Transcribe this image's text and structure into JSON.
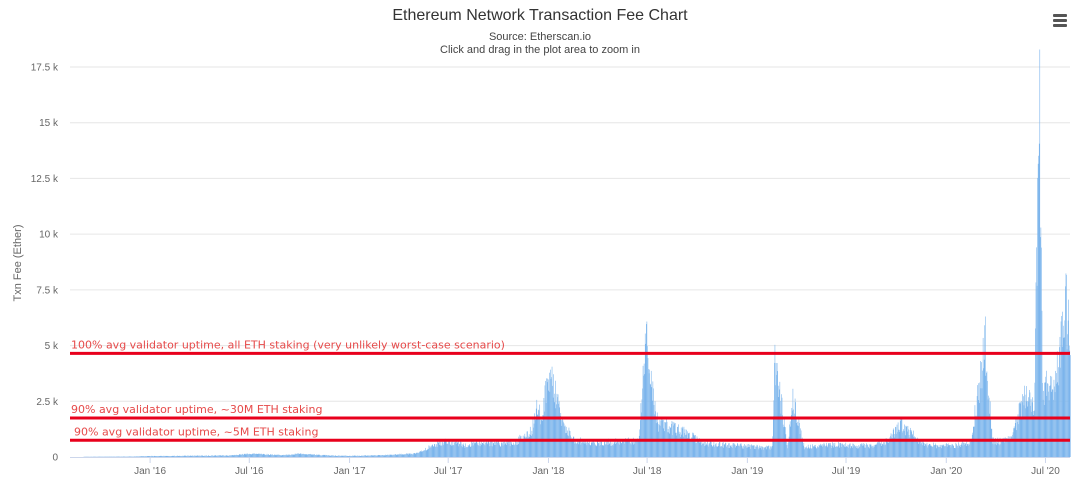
{
  "menu": {
    "icon": "hamburger-menu-icon"
  },
  "chart_data": {
    "type": "bar",
    "title": "Ethereum Network Transaction Fee Chart",
    "subtitle": "Source: Etherscan.io",
    "hint": "Click and drag in the plot area to zoom in",
    "ylabel": "Txn Fee (Ether)",
    "xlabel": "",
    "x_range": [
      "2015-08-07",
      "2020-08-15"
    ],
    "ylim": [
      0,
      17500
    ],
    "grid": true,
    "legend": "none",
    "color": "#7cb5ec",
    "x_ticks": [
      {
        "label": "Jan '16",
        "date": "2016-01-01"
      },
      {
        "label": "Jul '16",
        "date": "2016-07-01"
      },
      {
        "label": "Jan '17",
        "date": "2017-01-01"
      },
      {
        "label": "Jul '17",
        "date": "2017-07-01"
      },
      {
        "label": "Jan '18",
        "date": "2018-01-01"
      },
      {
        "label": "Jul '18",
        "date": "2018-07-01"
      },
      {
        "label": "Jan '19",
        "date": "2019-01-01"
      },
      {
        "label": "Jul '19",
        "date": "2019-07-01"
      },
      {
        "label": "Jan '20",
        "date": "2020-01-01"
      },
      {
        "label": "Jul '20",
        "date": "2020-07-01"
      }
    ],
    "y_ticks": [
      {
        "label": "0",
        "value": 0
      },
      {
        "label": "2.5 k",
        "value": 2500
      },
      {
        "label": "5 k",
        "value": 5000
      },
      {
        "label": "7.5 k",
        "value": 7500
      },
      {
        "label": "10 k",
        "value": 10000
      },
      {
        "label": "12.5 k",
        "value": 12500
      },
      {
        "label": "15 k",
        "value": 15000
      },
      {
        "label": "17.5 k",
        "value": 17500
      }
    ],
    "series": [
      {
        "values": [
          [
            "2015-09-01",
            10
          ],
          [
            "2015-12-01",
            20
          ],
          [
            "2016-01-01",
            40
          ],
          [
            "2016-03-01",
            50
          ],
          [
            "2016-06-01",
            70
          ],
          [
            "2016-07-01",
            150
          ],
          [
            "2016-09-01",
            80
          ],
          [
            "2016-10-01",
            140
          ],
          [
            "2016-12-01",
            60
          ],
          [
            "2017-01-01",
            50
          ],
          [
            "2017-03-01",
            80
          ],
          [
            "2017-05-01",
            150
          ],
          [
            "2017-06-01",
            500
          ],
          [
            "2017-07-01",
            700
          ],
          [
            "2017-08-01",
            550
          ],
          [
            "2017-09-01",
            650
          ],
          [
            "2017-10-01",
            600
          ],
          [
            "2017-11-01",
            650
          ],
          [
            "2017-12-01",
            1200
          ],
          [
            "2017-12-10",
            2300
          ],
          [
            "2017-12-20",
            1800
          ],
          [
            "2018-01-01",
            3700
          ],
          [
            "2018-01-10",
            3200
          ],
          [
            "2018-01-25",
            1500
          ],
          [
            "2018-02-15",
            800
          ],
          [
            "2018-03-15",
            600
          ],
          [
            "2018-04-15",
            650
          ],
          [
            "2018-05-15",
            700
          ],
          [
            "2018-06-15",
            700
          ],
          [
            "2018-07-01",
            5850
          ],
          [
            "2018-07-03",
            4000
          ],
          [
            "2018-07-20",
            1500
          ],
          [
            "2018-08-15",
            1300
          ],
          [
            "2018-09-15",
            1000
          ],
          [
            "2018-10-15",
            600
          ],
          [
            "2018-11-15",
            550
          ],
          [
            "2018-12-15",
            500
          ],
          [
            "2019-01-15",
            450
          ],
          [
            "2019-02-15",
            400
          ],
          [
            "2019-02-20",
            4400
          ],
          [
            "2019-03-15",
            450
          ],
          [
            "2019-03-25",
            2500
          ],
          [
            "2019-04-15",
            450
          ],
          [
            "2019-05-15",
            500
          ],
          [
            "2019-06-15",
            550
          ],
          [
            "2019-07-15",
            500
          ],
          [
            "2019-08-15",
            500
          ],
          [
            "2019-09-15",
            700
          ],
          [
            "2019-10-10",
            1500
          ],
          [
            "2019-11-15",
            600
          ],
          [
            "2019-12-15",
            500
          ],
          [
            "2020-01-15",
            500
          ],
          [
            "2020-02-15",
            700
          ],
          [
            "2020-03-12",
            5050
          ],
          [
            "2020-03-25",
            700
          ],
          [
            "2020-04-15",
            700
          ],
          [
            "2020-05-01",
            900
          ],
          [
            "2020-05-15",
            2200
          ],
          [
            "2020-05-25",
            2700
          ],
          [
            "2020-06-10",
            2300
          ],
          [
            "2020-06-18",
            13000
          ],
          [
            "2020-06-20",
            15300
          ],
          [
            "2020-06-25",
            2800
          ],
          [
            "2020-07-05",
            3400
          ],
          [
            "2020-07-15",
            3000
          ],
          [
            "2020-07-25",
            4200
          ],
          [
            "2020-08-01",
            5800
          ],
          [
            "2020-08-05",
            7400
          ],
          [
            "2020-08-10",
            6000
          ],
          [
            "2020-08-15",
            5500
          ]
        ]
      }
    ],
    "annotations": [
      {
        "text": "100% avg validator uptime, all ETH staking (very unlikely worst-case scenario)",
        "value": 4650,
        "color": "#e8001c"
      },
      {
        "text": "90% avg validator uptime, ~30M ETH staking",
        "value": 1750,
        "color": "#e8001c"
      },
      {
        "text": "90% avg validator uptime, ~5M ETH staking",
        "value": 750,
        "color": "#e8001c"
      }
    ]
  }
}
